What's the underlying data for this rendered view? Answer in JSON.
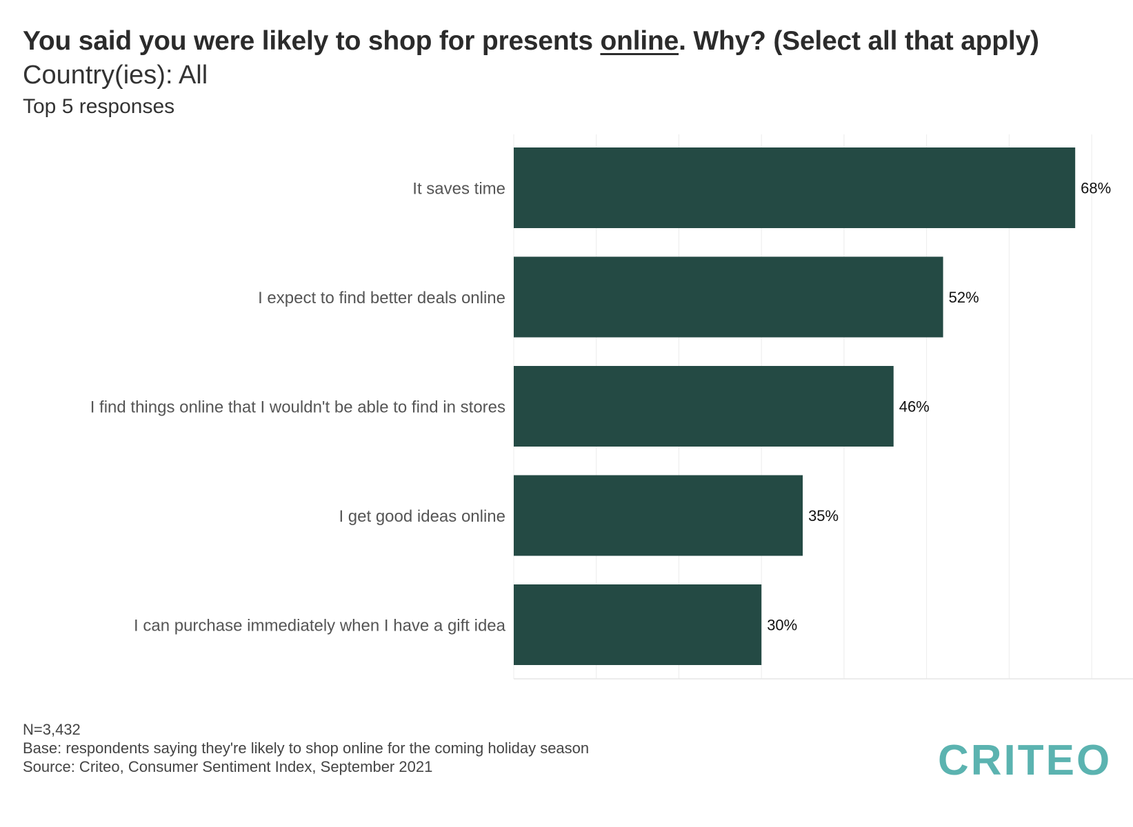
{
  "header": {
    "title_before": "You said you were likely to shop for presents ",
    "title_underlined": "online",
    "title_after": ". Why? (Select all that apply)",
    "subtitle": "Country(ies): All",
    "subtitle2": "Top 5 responses"
  },
  "chart_data": {
    "type": "bar",
    "orientation": "horizontal",
    "categories": [
      "It saves time",
      "I expect to find better deals online",
      "I find things online that I wouldn't be able to find in stores",
      "I get good ideas online",
      "I can purchase immediately when I have a gift idea"
    ],
    "values": [
      68,
      52,
      46,
      35,
      30
    ],
    "value_labels": [
      "68%",
      "52%",
      "46%",
      "35%",
      "30%"
    ],
    "xlim": [
      0,
      75
    ],
    "grid": true,
    "bar_color": "#244a44"
  },
  "footer": {
    "n": "N=3,432",
    "base": "Base: respondents saying they're likely to shop online for the coming holiday season",
    "source": "Source: Criteo, Consumer Sentiment Index, September 2021"
  },
  "logo": {
    "text": "CRITEO",
    "color": "#5bb3b0"
  }
}
